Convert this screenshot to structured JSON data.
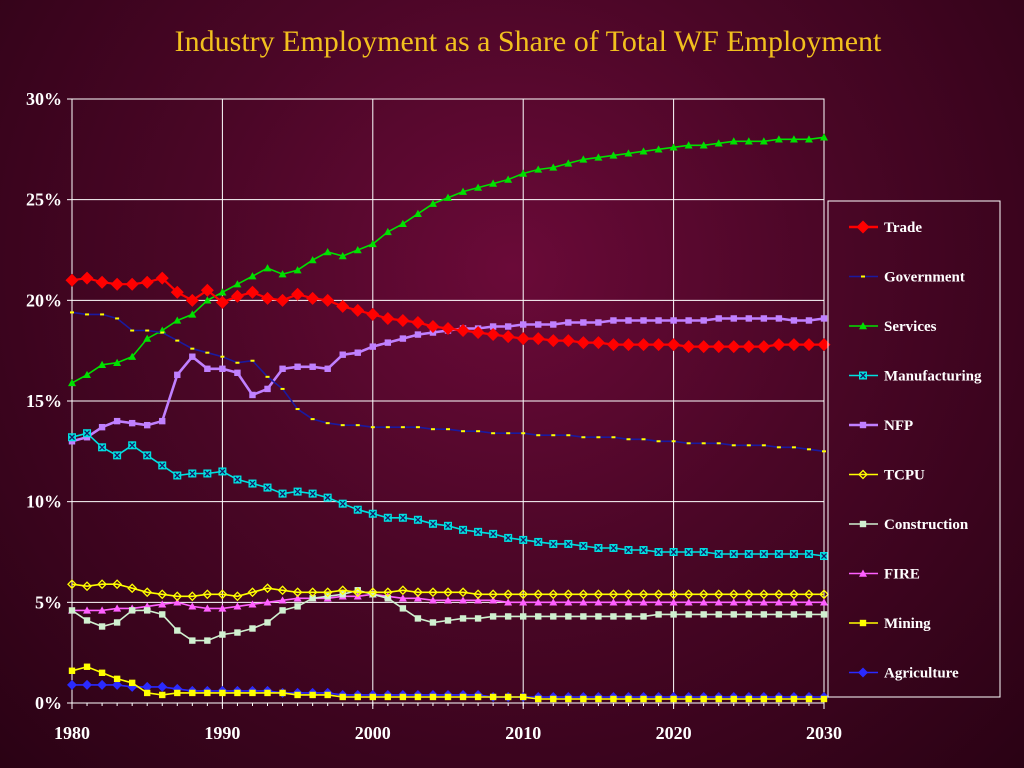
{
  "chart_data": {
    "type": "line",
    "title": "Industry Employment as a  Share of Total WF Employment",
    "xlabel": "",
    "ylabel": "",
    "xlim": [
      1980,
      2030
    ],
    "ylim": [
      0,
      30
    ],
    "x_ticks": [
      "1980",
      "1990",
      "2000",
      "2010",
      "2020",
      "2030"
    ],
    "y_ticks": [
      "0%",
      "5%",
      "10%",
      "15%",
      "20%",
      "25%",
      "30%"
    ],
    "grid": "vertical and horizontal",
    "legend_position": "right",
    "x": [
      1980,
      1981,
      1982,
      1983,
      1984,
      1985,
      1986,
      1987,
      1988,
      1989,
      1990,
      1991,
      1992,
      1993,
      1994,
      1995,
      1996,
      1997,
      1998,
      1999,
      2000,
      2001,
      2002,
      2003,
      2004,
      2005,
      2006,
      2007,
      2008,
      2009,
      2010,
      2011,
      2012,
      2013,
      2014,
      2015,
      2016,
      2017,
      2018,
      2019,
      2020,
      2021,
      2022,
      2023,
      2024,
      2025,
      2026,
      2027,
      2028,
      2029,
      2030
    ],
    "series": [
      {
        "name": "Trade",
        "color": "#ff0000",
        "marker": "diamond",
        "values": [
          21.0,
          21.1,
          20.9,
          20.8,
          20.8,
          20.9,
          21.1,
          20.4,
          20.0,
          20.5,
          19.9,
          20.2,
          20.4,
          20.1,
          20.0,
          20.3,
          20.1,
          20.0,
          19.7,
          19.5,
          19.3,
          19.1,
          19.0,
          18.9,
          18.7,
          18.6,
          18.5,
          18.4,
          18.3,
          18.2,
          18.1,
          18.1,
          18.0,
          18.0,
          17.9,
          17.9,
          17.8,
          17.8,
          17.8,
          17.8,
          17.8,
          17.7,
          17.7,
          17.7,
          17.7,
          17.7,
          17.7,
          17.8,
          17.8,
          17.8,
          17.8
        ]
      },
      {
        "name": "Government",
        "color": "#ffff00",
        "line_color": "#1a1aa0",
        "marker": "dash",
        "values": [
          19.4,
          19.3,
          19.3,
          19.1,
          18.5,
          18.5,
          18.4,
          18.0,
          17.6,
          17.4,
          17.2,
          16.9,
          17.0,
          16.2,
          15.6,
          14.6,
          14.1,
          13.9,
          13.8,
          13.8,
          13.7,
          13.7,
          13.7,
          13.7,
          13.6,
          13.6,
          13.5,
          13.5,
          13.4,
          13.4,
          13.4,
          13.3,
          13.3,
          13.3,
          13.2,
          13.2,
          13.2,
          13.1,
          13.1,
          13.0,
          13.0,
          12.9,
          12.9,
          12.9,
          12.8,
          12.8,
          12.8,
          12.7,
          12.7,
          12.6,
          12.5
        ]
      },
      {
        "name": "Services",
        "color": "#00e000",
        "marker": "triangle",
        "values": [
          15.9,
          16.3,
          16.8,
          16.9,
          17.2,
          18.1,
          18.5,
          19.0,
          19.3,
          20.0,
          20.4,
          20.8,
          21.2,
          21.6,
          21.3,
          21.5,
          22.0,
          22.4,
          22.2,
          22.5,
          22.8,
          23.4,
          23.8,
          24.3,
          24.8,
          25.1,
          25.4,
          25.6,
          25.8,
          26.0,
          26.3,
          26.5,
          26.6,
          26.8,
          27.0,
          27.1,
          27.2,
          27.3,
          27.4,
          27.5,
          27.6,
          27.7,
          27.7,
          27.8,
          27.9,
          27.9,
          27.9,
          28.0,
          28.0,
          28.0,
          28.1
        ]
      },
      {
        "name": "Manufacturing",
        "color": "#00e0e0",
        "marker": "square-x",
        "values": [
          13.2,
          13.4,
          12.7,
          12.3,
          12.8,
          12.3,
          11.8,
          11.3,
          11.4,
          11.4,
          11.5,
          11.1,
          10.9,
          10.7,
          10.4,
          10.5,
          10.4,
          10.2,
          9.9,
          9.6,
          9.4,
          9.2,
          9.2,
          9.1,
          8.9,
          8.8,
          8.6,
          8.5,
          8.4,
          8.2,
          8.1,
          8.0,
          7.9,
          7.9,
          7.8,
          7.7,
          7.7,
          7.6,
          7.6,
          7.5,
          7.5,
          7.5,
          7.5,
          7.4,
          7.4,
          7.4,
          7.4,
          7.4,
          7.4,
          7.4,
          7.3
        ]
      },
      {
        "name": "NFP",
        "color": "#c080ff",
        "marker": "square",
        "values": [
          13.0,
          13.2,
          13.7,
          14.0,
          13.9,
          13.8,
          14.0,
          16.3,
          17.2,
          16.6,
          16.6,
          16.4,
          15.3,
          15.6,
          16.6,
          16.7,
          16.7,
          16.6,
          17.3,
          17.4,
          17.7,
          17.9,
          18.1,
          18.3,
          18.4,
          18.5,
          18.6,
          18.6,
          18.7,
          18.7,
          18.8,
          18.8,
          18.8,
          18.9,
          18.9,
          18.9,
          19.0,
          19.0,
          19.0,
          19.0,
          19.0,
          19.0,
          19.0,
          19.1,
          19.1,
          19.1,
          19.1,
          19.1,
          19.0,
          19.0,
          19.1
        ]
      },
      {
        "name": "TCPU",
        "color": "#ffff00",
        "marker": "diamond-open",
        "values": [
          5.9,
          5.8,
          5.9,
          5.9,
          5.7,
          5.5,
          5.4,
          5.3,
          5.3,
          5.4,
          5.4,
          5.3,
          5.5,
          5.7,
          5.6,
          5.5,
          5.5,
          5.5,
          5.6,
          5.5,
          5.5,
          5.5,
          5.6,
          5.5,
          5.5,
          5.5,
          5.5,
          5.4,
          5.4,
          5.4,
          5.4,
          5.4,
          5.4,
          5.4,
          5.4,
          5.4,
          5.4,
          5.4,
          5.4,
          5.4,
          5.4,
          5.4,
          5.4,
          5.4,
          5.4,
          5.4,
          5.4,
          5.4,
          5.4,
          5.4,
          5.4
        ]
      },
      {
        "name": "Construction",
        "color": "#d0f0d0",
        "marker": "square",
        "values": [
          4.6,
          4.1,
          3.8,
          4.0,
          4.6,
          4.6,
          4.4,
          3.6,
          3.1,
          3.1,
          3.4,
          3.5,
          3.7,
          4.0,
          4.6,
          4.8,
          5.2,
          5.3,
          5.4,
          5.6,
          5.4,
          5.2,
          4.7,
          4.2,
          4.0,
          4.1,
          4.2,
          4.2,
          4.3,
          4.3,
          4.3,
          4.3,
          4.3,
          4.3,
          4.3,
          4.3,
          4.3,
          4.3,
          4.3,
          4.4,
          4.4,
          4.4,
          4.4,
          4.4,
          4.4,
          4.4,
          4.4,
          4.4,
          4.4,
          4.4,
          4.4
        ]
      },
      {
        "name": "FIRE",
        "color": "#ff60ff",
        "marker": "triangle",
        "values": [
          4.6,
          4.6,
          4.6,
          4.7,
          4.7,
          4.8,
          4.9,
          5.0,
          4.8,
          4.7,
          4.7,
          4.8,
          4.9,
          5.0,
          5.1,
          5.2,
          5.2,
          5.2,
          5.3,
          5.3,
          5.4,
          5.3,
          5.2,
          5.2,
          5.1,
          5.1,
          5.1,
          5.1,
          5.1,
          5.0,
          5.0,
          5.0,
          5.0,
          5.0,
          5.0,
          5.0,
          5.0,
          5.0,
          5.0,
          5.0,
          5.0,
          5.0,
          5.0,
          5.0,
          5.0,
          5.0,
          5.0,
          5.0,
          5.0,
          5.0,
          5.0
        ]
      },
      {
        "name": "Mining",
        "color": "#ffff00",
        "marker": "square",
        "values": [
          1.6,
          1.8,
          1.5,
          1.2,
          1.0,
          0.5,
          0.4,
          0.5,
          0.5,
          0.5,
          0.5,
          0.5,
          0.5,
          0.5,
          0.5,
          0.4,
          0.4,
          0.4,
          0.3,
          0.3,
          0.3,
          0.3,
          0.3,
          0.3,
          0.3,
          0.3,
          0.3,
          0.3,
          0.3,
          0.3,
          0.3,
          0.2,
          0.2,
          0.2,
          0.2,
          0.2,
          0.2,
          0.2,
          0.2,
          0.2,
          0.2,
          0.2,
          0.2,
          0.2,
          0.2,
          0.2,
          0.2,
          0.2,
          0.2,
          0.2,
          0.2
        ]
      },
      {
        "name": "Agriculture",
        "color": "#2a2aff",
        "marker": "diamond",
        "values": [
          0.9,
          0.9,
          0.9,
          0.9,
          0.8,
          0.8,
          0.8,
          0.7,
          0.6,
          0.6,
          0.6,
          0.6,
          0.6,
          0.6,
          0.5,
          0.5,
          0.5,
          0.5,
          0.4,
          0.4,
          0.4,
          0.4,
          0.4,
          0.4,
          0.4,
          0.4,
          0.4,
          0.4,
          0.3,
          0.3,
          0.3,
          0.3,
          0.3,
          0.3,
          0.3,
          0.3,
          0.3,
          0.3,
          0.3,
          0.3,
          0.3,
          0.3,
          0.3,
          0.3,
          0.3,
          0.3,
          0.3,
          0.3,
          0.3,
          0.3,
          0.3
        ]
      }
    ]
  }
}
